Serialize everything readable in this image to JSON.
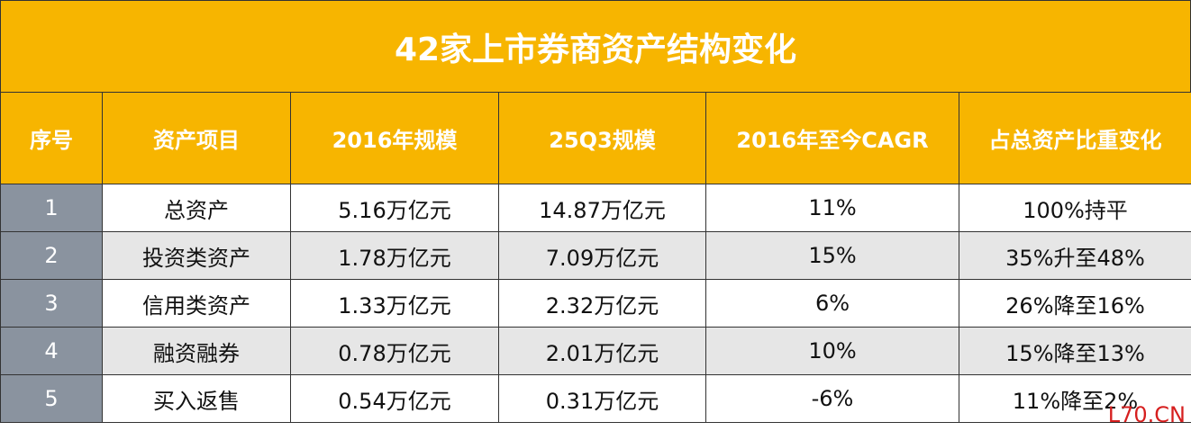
{
  "title": "42家上市券商资产结构变化",
  "table": {
    "header": [
      "序号",
      "资产项目",
      "2016年规模",
      "25Q3规模",
      "2016年至今CAGR",
      "占总资产比重变化"
    ],
    "rows": [
      [
        "1",
        "总资产",
        "5.16万亿元",
        "14.87万亿元",
        "11%",
        "100%持平"
      ],
      [
        "2",
        "投资类资产",
        "1.78万亿元",
        "7.09万亿元",
        "15%",
        "35%升至48%"
      ],
      [
        "3",
        "信用类资产",
        "1.33万亿元",
        "2.32万亿元",
        "6%",
        "26%降至16%"
      ],
      [
        "4",
        "融资融券",
        "0.78万亿元",
        "2.01万亿元",
        "10%",
        "15%降至13%"
      ],
      [
        "5",
        "买入返售",
        "0.54万亿元",
        "0.31万亿元",
        "-6%",
        "11%降至2%"
      ]
    ]
  },
  "watermark": "L70.CN"
}
